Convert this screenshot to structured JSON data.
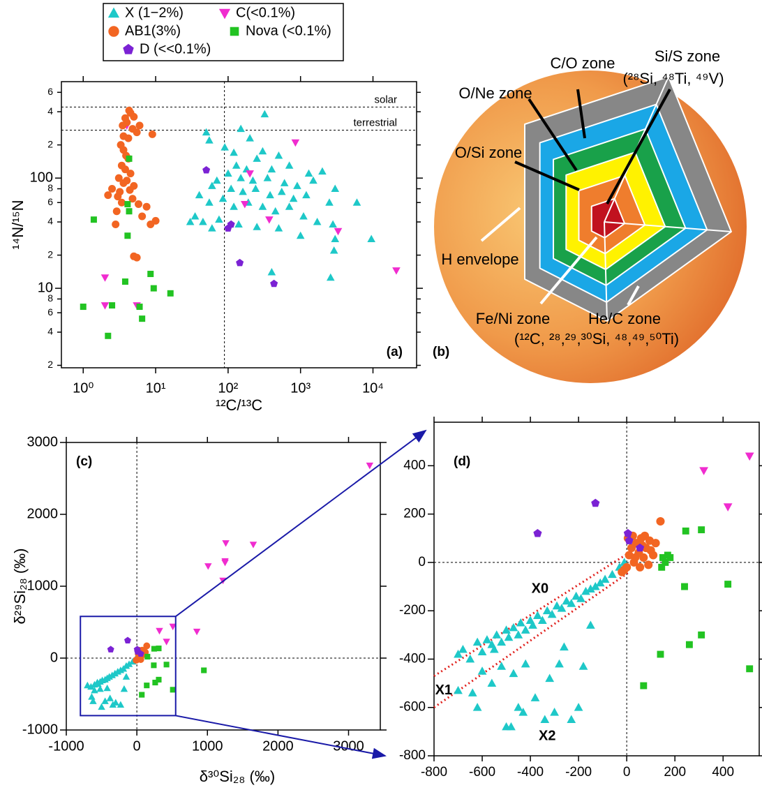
{
  "chart_data": [
    {
      "type": "scatter",
      "panel_label": "(a)",
      "xlabel": "¹²C/¹³C",
      "ylabel": "¹⁴N/¹⁵N",
      "log_x": true,
      "log_y": true,
      "xlim": [
        0.5,
        40000
      ],
      "ylim": [
        1.9,
        750
      ],
      "xticks": [
        {
          "value": 1,
          "label": "10⁰"
        },
        {
          "value": 10,
          "label": "10¹"
        },
        {
          "value": 100,
          "label": "10²"
        },
        {
          "value": 1000,
          "label": "10³"
        },
        {
          "value": 10000,
          "label": "10⁴"
        }
      ],
      "yticks": [
        2,
        4,
        6,
        8,
        10,
        {
          "value": 20,
          "label": "2"
        },
        {
          "value": 40,
          "label": "4"
        },
        {
          "value": 60,
          "label": "6"
        },
        {
          "value": 80,
          "label": "8"
        },
        100,
        {
          "value": 200,
          "label": "2"
        },
        {
          "value": 400,
          "label": "4"
        },
        {
          "value": 600,
          "label": "6"
        }
      ],
      "hlines": [
        {
          "value": 441,
          "label": "solar"
        },
        {
          "value": 272,
          "label": "terrestrial"
        }
      ],
      "vlines": [
        89
      ],
      "series": [
        {
          "name": "X (1−2%)",
          "color": "#1ec8c8",
          "marker": "triangle",
          "x": [
            320,
            50,
            150,
            55,
            200,
            90,
            120,
            300,
            500,
            250,
            130,
            180,
            400,
            700,
            1300,
            2000,
            100,
            70,
            150,
            220,
            350,
            600,
            900,
            1500,
            3000,
            60,
            110,
            160,
            240,
            380,
            550,
            800,
            1200,
            2500,
            6000,
            40,
            55,
            85,
            120,
            190,
            300,
            450,
            700,
            1100,
            1700,
            2800,
            35,
            45,
            75,
            140,
            250,
            500,
            1000,
            3000,
            9500,
            2900,
            400,
            2600,
            60,
            30
          ],
          "values": [
            380,
            260,
            280,
            220,
            230,
            190,
            170,
            175,
            160,
            150,
            130,
            120,
            120,
            130,
            110,
            115,
            110,
            95,
            100,
            95,
            100,
            90,
            85,
            95,
            80,
            85,
            80,
            75,
            80,
            70,
            75,
            65,
            70,
            60,
            60,
            70,
            60,
            65,
            55,
            60,
            55,
            50,
            55,
            45,
            40,
            38,
            45,
            40,
            42,
            38,
            36,
            35,
            30,
            28,
            28,
            22,
            14,
            12.5,
            35,
            40
          ]
        },
        {
          "name": "C(<0.1%)",
          "color": "#f02ccf",
          "marker": "triangle-down",
          "x": [
            4,
            850,
            200,
            170,
            370,
            3300,
            2,
            2,
            21000,
            5.5
          ],
          "values": [
            300,
            210,
            110,
            58,
            42,
            33,
            12.5,
            7,
            14.5,
            7
          ]
        },
        {
          "name": "AB1(3%)",
          "color": "#f26522",
          "marker": "circle",
          "x": [
            4.3,
            4.5,
            3.8,
            5,
            4,
            3.5,
            6,
            4.8,
            5.5,
            3.6,
            9,
            4.2,
            3.3,
            3.6,
            3.9,
            4.2,
            3.4,
            3.8,
            4.5,
            3.1,
            4,
            3.6,
            5,
            2.5,
            4.4,
            3.2,
            2.2,
            3,
            4.8,
            3.4,
            5.8,
            7.5,
            2.9,
            6.5,
            8.5,
            10,
            2.8,
            5,
            5.5
          ],
          "values": [
            410,
            390,
            350,
            360,
            320,
            300,
            300,
            280,
            260,
            240,
            250,
            230,
            200,
            180,
            160,
            150,
            130,
            120,
            110,
            100,
            95,
            90,
            85,
            80,
            78,
            75,
            70,
            68,
            65,
            60,
            58,
            55,
            50,
            45,
            38,
            41,
            38,
            19.5,
            19
          ]
        },
        {
          "name": "Nova (<0.1%)",
          "color": "#22c322",
          "marker": "square",
          "x": [
            4.3,
            4.1,
            4.3,
            1.4,
            4.1,
            3.8,
            8.5,
            9.4,
            16,
            2.5,
            1,
            6,
            6.5,
            2.2
          ],
          "values": [
            150,
            58,
            50,
            42,
            30,
            11.5,
            13.5,
            10,
            9,
            7,
            6.8,
            6.8,
            5.3,
            3.7
          ]
        },
        {
          "name": "D (<<0.1%)",
          "color": "#7b22d4",
          "marker": "pentagon",
          "x": [
            50,
            110,
            100,
            145,
            430
          ],
          "values": [
            118,
            38,
            35,
            17,
            11
          ]
        }
      ]
    },
    {
      "type": "scatter",
      "panel_label": "(c)",
      "xlabel": "δ³⁰Si₂₈ (‰)",
      "ylabel": "δ²⁹Si₂₈ (‰)",
      "xlim": [
        -1000,
        3450
      ],
      "ylim": [
        -1000,
        3000
      ],
      "xticks": [
        -1000,
        0,
        1000,
        2000,
        3000
      ],
      "yticks": [
        -1000,
        0,
        1000,
        2000,
        3000
      ],
      "hlines": [
        0
      ],
      "vlines": [
        0
      ],
      "series": [
        {
          "color": "#1ec8c8",
          "marker": "triangle",
          "x": [
            -700,
            -650,
            -600,
            -560,
            -520,
            -490,
            -450,
            -420,
            -390,
            -350,
            -310,
            -270,
            -230,
            -190,
            -150,
            -110,
            -60,
            -10,
            -600,
            -520,
            -640,
            -620,
            -500,
            -450,
            -380,
            -340,
            -300,
            -230,
            -180,
            -150,
            -420,
            -550
          ],
          "values": [
            -380,
            -400,
            -370,
            -340,
            -330,
            -310,
            -300,
            -280,
            -260,
            -240,
            -215,
            -190,
            -170,
            -150,
            -110,
            -85,
            -50,
            0,
            -450,
            -430,
            -540,
            -600,
            -680,
            -600,
            -560,
            -650,
            -620,
            -650,
            -430,
            -260,
            -420,
            -360
          ]
        },
        {
          "color": "#f02ccf",
          "marker": "triangle-down",
          "x": [
            320,
            420,
            510,
            1250,
            1250,
            1010,
            1220,
            1260,
            1650,
            850,
            3300
          ],
          "values": [
            380,
            230,
            440,
            1350,
            1330,
            1280,
            1080,
            1600,
            1580,
            370,
            2680
          ]
        },
        {
          "color": "#f26522",
          "marker": "circle",
          "x": [
            0,
            20,
            40,
            60,
            80,
            100,
            120,
            -10,
            25,
            75,
            140,
            55
          ],
          "values": [
            -20,
            60,
            80,
            100,
            60,
            50,
            80,
            -30,
            110,
            110,
            170,
            -20
          ]
        },
        {
          "color": "#22c322",
          "marker": "square",
          "x": [
            70,
            140,
            150,
            240,
            245,
            260,
            310,
            310,
            420,
            510,
            950
          ],
          "values": [
            -510,
            -380,
            20,
            -100,
            130,
            -340,
            -300,
            135,
            -90,
            -440,
            -170
          ]
        },
        {
          "color": "#7b22d4",
          "marker": "pentagon",
          "x": [
            -370,
            -130,
            5,
            10,
            55
          ],
          "values": [
            120,
            245,
            120,
            90,
            60
          ]
        }
      ]
    },
    {
      "type": "scatter",
      "panel_label": "(d)",
      "xlim": [
        -800,
        550
      ],
      "ylim": [
        -800,
        580
      ],
      "xticks": [
        -800,
        -600,
        -400,
        -200,
        0,
        200,
        400
      ],
      "yticks": [
        -800,
        -600,
        -400,
        -200,
        0,
        200,
        400
      ],
      "hlines": [
        0
      ],
      "vlines": [
        0
      ],
      "lines": [
        {
          "color": "#e0201c",
          "x": [
            -800,
            10
          ],
          "values": [
            -470,
            40
          ]
        },
        {
          "color": "#e0201c",
          "x": [
            -800,
            10
          ],
          "values": [
            -600,
            -40
          ]
        }
      ],
      "annotations": [
        {
          "text": "X0",
          "color": "#e0201c",
          "x": -360,
          "y": -110
        },
        {
          "text": "X1",
          "color": "#e0201c",
          "x": -760,
          "y": -530
        },
        {
          "text": "X2",
          "color": "#e0201c",
          "x": -330,
          "y": -720
        }
      ],
      "series": [
        {
          "color": "#1ec8c8",
          "marker": "triangle",
          "x": [
            -700,
            -680,
            -650,
            -620,
            -600,
            -580,
            -560,
            -540,
            -520,
            -500,
            -490,
            -470,
            -450,
            -440,
            -420,
            -400,
            -390,
            -370,
            -350,
            -330,
            -310,
            -290,
            -270,
            -250,
            -230,
            -210,
            -190,
            -170,
            -150,
            -130,
            -110,
            -90,
            -60,
            -30,
            -10,
            -600,
            -560,
            -520,
            -640,
            -700,
            -620,
            -500,
            -480,
            -450,
            -430,
            -380,
            -340,
            -300,
            -320,
            -280,
            -230,
            -200,
            -180,
            -260,
            -150,
            -420,
            -470,
            -550
          ],
          "values": [
            -380,
            -360,
            -400,
            -330,
            -370,
            -320,
            -340,
            -300,
            -330,
            -280,
            -310,
            -270,
            -300,
            -250,
            -280,
            -240,
            -260,
            -220,
            -240,
            -200,
            -215,
            -180,
            -190,
            -160,
            -170,
            -140,
            -150,
            -120,
            -110,
            -100,
            -85,
            -70,
            -50,
            -20,
            0,
            -450,
            -500,
            -430,
            -540,
            -530,
            -600,
            -680,
            -680,
            -600,
            -620,
            -560,
            -650,
            -620,
            -480,
            -420,
            -650,
            -600,
            -430,
            -350,
            -260,
            -420,
            -460,
            -360
          ]
        },
        {
          "color": "#f02ccf",
          "marker": "triangle-down",
          "x": [
            320,
            420,
            510
          ],
          "values": [
            380,
            230,
            440
          ]
        },
        {
          "color": "#f26522",
          "marker": "circle",
          "x": [
            0,
            10,
            20,
            30,
            40,
            50,
            60,
            70,
            80,
            90,
            100,
            110,
            120,
            -10,
            5,
            25,
            75,
            140,
            55,
            -20,
            35,
            65,
            95
          ],
          "values": [
            -20,
            30,
            60,
            0,
            80,
            40,
            100,
            20,
            60,
            -10,
            50,
            30,
            80,
            -30,
            100,
            110,
            110,
            170,
            -20,
            -40,
            20,
            70,
            90
          ]
        },
        {
          "color": "#22c322",
          "marker": "square",
          "x": [
            70,
            140,
            145,
            160,
            170,
            150,
            180,
            240,
            245,
            260,
            310,
            310,
            420,
            510
          ],
          "values": [
            -510,
            -380,
            -20,
            0,
            30,
            20,
            20,
            -100,
            130,
            -340,
            -300,
            135,
            -90,
            -440
          ]
        },
        {
          "color": "#7b22d4",
          "marker": "pentagon",
          "x": [
            -370,
            -130,
            5,
            10,
            55
          ],
          "values": [
            120,
            245,
            120,
            90,
            60
          ]
        }
      ]
    }
  ],
  "diagram": {
    "panel_label": "(b)",
    "labels": [
      "C/O zone",
      "Si/S zone",
      "(²⁸Si, ⁴⁸Ti, ⁴⁹V)",
      "O/Ne zone",
      "O/Si zone",
      "H envelope",
      "Fe/Ni zone",
      "He/C zone",
      "(¹²C, ²⁸,²⁹,³⁰Si, ⁴⁸,⁴⁹,⁵⁰Ti)"
    ]
  }
}
